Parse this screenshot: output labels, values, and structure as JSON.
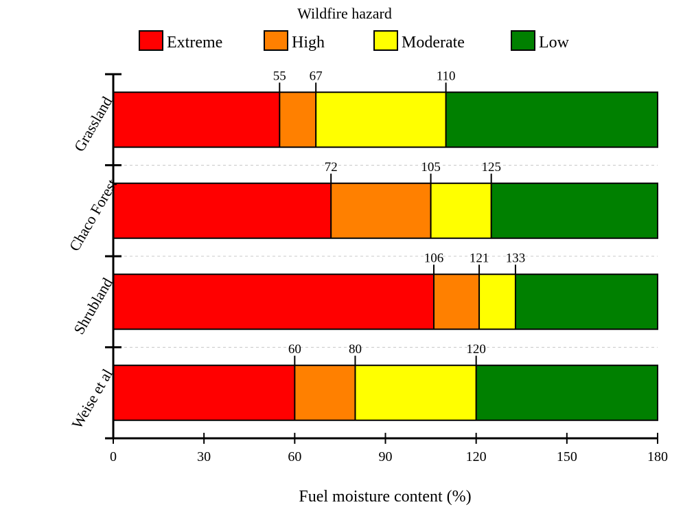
{
  "chart_data": {
    "type": "bar",
    "orientation": "horizontal",
    "stacked": true,
    "legend_title": "Wildfire hazard",
    "legend_position": "top",
    "xlabel": "Fuel moisture content (%)",
    "ylabel": "",
    "xlim": [
      0,
      180
    ],
    "xticks": [
      0,
      30,
      60,
      90,
      120,
      150,
      180
    ],
    "categories": [
      "Grassland",
      "Chaco Forest",
      "Shrubland",
      "Weise et al."
    ],
    "series": [
      {
        "name": "Extreme",
        "color": "#ff0000"
      },
      {
        "name": "High",
        "color": "#ff8000"
      },
      {
        "name": "Moderate",
        "color": "#ffff00"
      },
      {
        "name": "Low",
        "color": "#008000"
      }
    ],
    "thresholds": [
      [
        55,
        67,
        110
      ],
      [
        72,
        105,
        125
      ],
      [
        106,
        121,
        133
      ],
      [
        60,
        80,
        120
      ]
    ],
    "grid": false,
    "separators": "dashed"
  }
}
